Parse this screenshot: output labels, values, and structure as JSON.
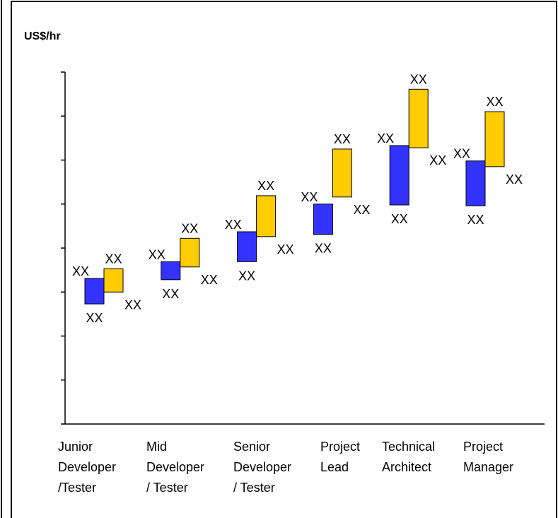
{
  "chart_data": {
    "type": "floating-bar",
    "title": "US$/hr",
    "categories": [
      [
        "Junior",
        "Developer",
        "/Tester"
      ],
      [
        "Mid",
        "Developer",
        "/ Tester"
      ],
      [
        "Senior",
        "Developer",
        "/ Tester"
      ],
      [
        "Project",
        "Lead"
      ],
      [
        "Technical",
        "Architect"
      ],
      [
        "Project",
        "Manager"
      ]
    ],
    "ylim": [
      0,
      8
    ],
    "yticks": [
      0,
      1,
      2,
      3,
      4,
      5,
      6,
      7,
      8
    ],
    "series": [
      {
        "color": "#3333ff",
        "low": [
          2.73,
          3.28,
          3.69,
          4.31,
          4.98,
          4.96
        ],
        "high": [
          3.31,
          3.69,
          4.37,
          5.0,
          6.33,
          5.98
        ],
        "low_labels": [
          "XX",
          "XX",
          "XX",
          "XX",
          "XX",
          "XX"
        ],
        "high_labels": [
          "XX",
          "XX",
          "XX",
          "XX",
          "XX",
          "XX"
        ]
      },
      {
        "color": "#ffcc00",
        "low": [
          3.0,
          3.57,
          4.26,
          5.16,
          6.28,
          5.85
        ],
        "high": [
          3.53,
          4.22,
          5.19,
          6.25,
          7.61,
          7.1
        ],
        "low_labels": [
          "XX",
          "XX",
          "XX",
          "XX",
          "XX",
          "XX"
        ],
        "high_labels": [
          "XX",
          "XX",
          "XX",
          "XX",
          "XX",
          "XX"
        ]
      }
    ]
  }
}
